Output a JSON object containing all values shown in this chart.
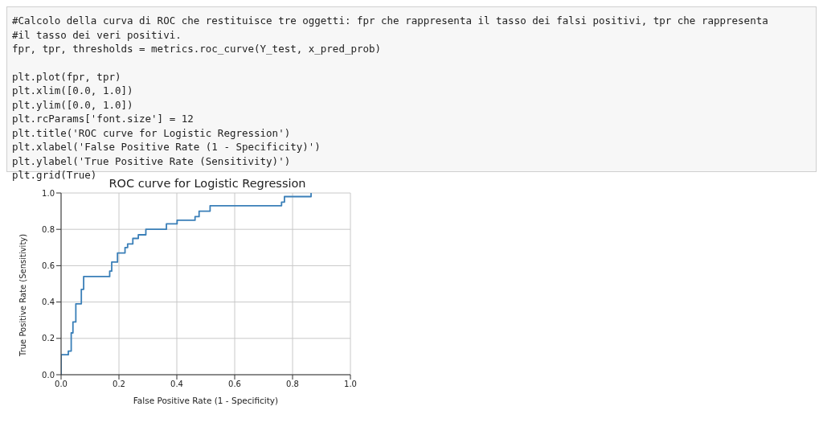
{
  "chart_data": {
    "type": "line",
    "title": "ROC curve for Logistic Regression",
    "xlabel": "False Positive Rate (1 - Specificity)",
    "ylabel": "True Positive Rate (Sensitivity)",
    "annotations": [
      "#Calcolo della curva di ROC che restituisce tre oggetti: fpr che rappresenta il tasso dei falsi positivi, tpr che rappresenta",
      "#il tasso dei veri positivi.",
      "fpr, tpr, thresholds = metrics.roc_curve(Y_test, x_pred_prob)",
      "plt.plot(fpr, tpr)",
      "plt.xlim([0.0, 1.0])",
      "plt.ylim([0.0, 1.0])",
      "plt.rcParams['font.size'] = 12",
      "plt.title('ROC curve for Logistic Regression')",
      "plt.xlabel('False Positive Rate (1 - Specificity)')",
      "plt.ylabel('True Positive Rate (Sensitivity)')",
      "plt.grid(True)"
    ],
    "x": [
      0,
      0,
      0.025,
      0.025,
      0.035,
      0.035,
      0.041,
      0.041,
      0.051,
      0.051,
      0.07,
      0.07,
      0.078,
      0.078,
      0.168,
      0.168,
      0.175,
      0.175,
      0.195,
      0.195,
      0.221,
      0.221,
      0.23,
      0.23,
      0.248,
      0.248,
      0.267,
      0.267,
      0.293,
      0.293,
      0.364,
      0.364,
      0.401,
      0.401,
      0.463,
      0.463,
      0.477,
      0.477,
      0.515,
      0.515,
      0.762,
      0.762,
      0.772,
      0.772,
      0.864,
      0.864
    ],
    "series": [
      {
        "color": "#3a7fb8",
        "values": [
          0,
          0.11,
          0.11,
          0.13,
          0.13,
          0.23,
          0.23,
          0.29,
          0.29,
          0.39,
          0.39,
          0.47,
          0.47,
          0.54,
          0.54,
          0.57,
          0.57,
          0.62,
          0.62,
          0.67,
          0.67,
          0.7,
          0.7,
          0.72,
          0.72,
          0.75,
          0.75,
          0.77,
          0.77,
          0.8,
          0.8,
          0.83,
          0.83,
          0.85,
          0.85,
          0.87,
          0.87,
          0.9,
          0.9,
          0.93,
          0.93,
          0.95,
          0.95,
          0.98,
          0.98,
          1.0
        ]
      }
    ],
    "xlim": [
      0,
      1
    ],
    "ylim": [
      0,
      1
    ],
    "xticks": [
      {
        "value": 0,
        "label": "0.0"
      },
      0.2,
      0.4,
      0.6,
      0.8,
      {
        "value": 1,
        "label": "1.0"
      }
    ],
    "yticks": [
      {
        "value": 0,
        "label": "0.0"
      },
      0.2,
      0.4,
      0.6,
      0.8,
      {
        "value": 1,
        "label": "1.0"
      }
    ],
    "grid": true,
    "marker": "none",
    "line_style": "solid"
  }
}
